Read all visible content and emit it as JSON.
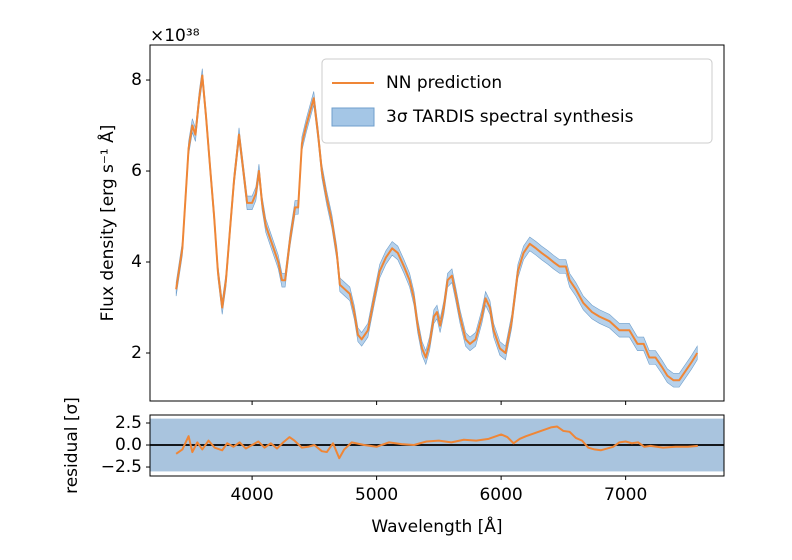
{
  "chart_data": [
    {
      "type": "line",
      "offset_text": "×10³⁸",
      "ylabel": "Flux density [erg s⁻¹ Å]",
      "xlim": [
        3180,
        7790
      ],
      "ylim": [
        0.945,
        8.77
      ],
      "xticks": [
        4000,
        5000,
        6000,
        7000
      ],
      "yticks": [
        2,
        4,
        6,
        8
      ],
      "legend": "upper right",
      "x": [
        3390,
        3440,
        3490,
        3520,
        3545,
        3575,
        3600,
        3630,
        3665,
        3695,
        3725,
        3760,
        3790,
        3825,
        3855,
        3895,
        3930,
        3960,
        4000,
        4030,
        4055,
        4080,
        4110,
        4160,
        4210,
        4240,
        4265,
        4305,
        4345,
        4370,
        4400,
        4435,
        4465,
        4495,
        4530,
        4560,
        4600,
        4640,
        4680,
        4705,
        4745,
        4785,
        4820,
        4850,
        4880,
        4930,
        4980,
        5025,
        5075,
        5125,
        5170,
        5220,
        5265,
        5300,
        5330,
        5365,
        5395,
        5425,
        5460,
        5485,
        5510,
        5540,
        5570,
        5605,
        5635,
        5670,
        5715,
        5750,
        5795,
        5845,
        5875,
        5910,
        5940,
        5990,
        6035,
        6085,
        6135,
        6180,
        6230,
        6280,
        6325,
        6375,
        6420,
        6470,
        6520,
        6550,
        6600,
        6660,
        6730,
        6790,
        6870,
        6950,
        7030,
        7095,
        7145,
        7190,
        7240,
        7290,
        7335,
        7385,
        7430,
        7480,
        7530,
        7575
      ],
      "series": [
        {
          "name": "3σ TARDIS spectral synthesis",
          "color": "#a4c6e6",
          "edge_color": "#6f9fcc",
          "lower": [
            3.25,
            4.15,
            6.35,
            6.85,
            6.65,
            7.45,
            7.95,
            7.05,
            5.85,
            4.85,
            3.65,
            2.85,
            3.45,
            4.65,
            5.65,
            6.65,
            5.85,
            5.15,
            5.15,
            5.35,
            5.85,
            5.15,
            4.65,
            4.25,
            3.85,
            3.45,
            3.45,
            4.35,
            5.05,
            5.05,
            6.45,
            6.85,
            7.15,
            7.45,
            6.65,
            5.85,
            5.25,
            4.75,
            4.05,
            3.35,
            3.25,
            3.15,
            2.75,
            2.25,
            2.15,
            2.35,
            3.05,
            3.65,
            3.95,
            4.15,
            4.05,
            3.75,
            3.45,
            3.05,
            2.45,
            1.95,
            1.75,
            2.05,
            2.65,
            2.75,
            2.45,
            2.85,
            3.45,
            3.55,
            3.15,
            2.65,
            2.15,
            2.05,
            2.15,
            2.65,
            3.05,
            2.85,
            2.35,
            1.95,
            1.85,
            2.55,
            3.65,
            4.05,
            4.25,
            4.15,
            4.05,
            3.95,
            3.85,
            3.75,
            3.75,
            3.45,
            3.25,
            2.95,
            2.75,
            2.65,
            2.55,
            2.35,
            2.35,
            2.05,
            2.05,
            1.75,
            1.75,
            1.55,
            1.35,
            1.25,
            1.25,
            1.45,
            1.65,
            1.85
          ],
          "upper": [
            3.55,
            4.45,
            6.65,
            7.15,
            6.95,
            7.75,
            8.25,
            7.35,
            6.15,
            5.15,
            3.95,
            3.15,
            3.75,
            4.95,
            5.95,
            6.95,
            6.15,
            5.45,
            5.45,
            5.65,
            6.15,
            5.45,
            4.95,
            4.55,
            4.15,
            3.75,
            3.75,
            4.65,
            5.35,
            5.35,
            6.75,
            7.15,
            7.45,
            7.75,
            6.95,
            6.15,
            5.55,
            5.05,
            4.35,
            3.65,
            3.55,
            3.45,
            3.05,
            2.55,
            2.45,
            2.65,
            3.35,
            3.95,
            4.25,
            4.45,
            4.35,
            4.05,
            3.75,
            3.35,
            2.75,
            2.25,
            2.05,
            2.35,
            2.95,
            3.05,
            2.75,
            3.15,
            3.75,
            3.85,
            3.45,
            2.95,
            2.45,
            2.35,
            2.45,
            2.95,
            3.35,
            3.15,
            2.65,
            2.25,
            2.15,
            2.85,
            3.95,
            4.35,
            4.55,
            4.45,
            4.35,
            4.25,
            4.15,
            4.05,
            4.05,
            3.75,
            3.55,
            3.25,
            3.05,
            2.95,
            2.85,
            2.65,
            2.65,
            2.35,
            2.35,
            2.05,
            2.05,
            1.85,
            1.65,
            1.55,
            1.55,
            1.75,
            1.95,
            2.15
          ]
        },
        {
          "name": "NN prediction",
          "color": "#ef8636",
          "values": [
            3.4,
            4.3,
            6.5,
            7.0,
            6.8,
            7.6,
            8.1,
            7.2,
            6.0,
            5.0,
            3.8,
            3.0,
            3.6,
            4.8,
            5.8,
            6.8,
            6.0,
            5.3,
            5.3,
            5.5,
            6.0,
            5.3,
            4.8,
            4.4,
            4.0,
            3.6,
            3.6,
            4.5,
            5.2,
            5.2,
            6.6,
            7.0,
            7.3,
            7.6,
            6.8,
            6.0,
            5.4,
            4.9,
            4.2,
            3.5,
            3.4,
            3.3,
            2.9,
            2.4,
            2.3,
            2.5,
            3.2,
            3.8,
            4.1,
            4.3,
            4.2,
            3.9,
            3.6,
            3.2,
            2.6,
            2.1,
            1.9,
            2.2,
            2.8,
            2.9,
            2.6,
            3.0,
            3.6,
            3.7,
            3.3,
            2.8,
            2.3,
            2.2,
            2.3,
            2.8,
            3.2,
            3.0,
            2.5,
            2.1,
            2.0,
            2.7,
            3.8,
            4.2,
            4.4,
            4.3,
            4.2,
            4.1,
            4.0,
            3.9,
            3.9,
            3.6,
            3.4,
            3.1,
            2.9,
            2.8,
            2.7,
            2.5,
            2.5,
            2.2,
            2.2,
            1.9,
            1.9,
            1.7,
            1.5,
            1.4,
            1.4,
            1.6,
            1.8,
            2.0
          ]
        }
      ]
    },
    {
      "type": "line",
      "ylabel": "residual [σ]",
      "xlabel": "Wavelength [Å]",
      "xlim": [
        3180,
        7790
      ],
      "ylim": [
        -3.52,
        3.41
      ],
      "xticks": [
        4000,
        5000,
        6000,
        7000
      ],
      "yticks": [
        2.5,
        {
          "value": 0,
          "label": "0.0"
        },
        {
          "value": -2.5,
          "label": "−2.5"
        }
      ],
      "band": {
        "lower": -3,
        "upper": 3,
        "color": "#a9c4de"
      },
      "hline": 0,
      "x": [
        3390,
        3440,
        3490,
        3520,
        3560,
        3600,
        3650,
        3700,
        3760,
        3800,
        3850,
        3900,
        3950,
        4000,
        4050,
        4100,
        4150,
        4200,
        4250,
        4300,
        4340,
        4400,
        4450,
        4500,
        4560,
        4600,
        4650,
        4700,
        4740,
        4800,
        4900,
        5000,
        5100,
        5200,
        5300,
        5400,
        5500,
        5600,
        5700,
        5800,
        5900,
        6000,
        6050,
        6100,
        6150,
        6200,
        6300,
        6400,
        6450,
        6500,
        6550,
        6600,
        6650,
        6700,
        6750,
        6800,
        6850,
        6900,
        6950,
        7000,
        7050,
        7100,
        7150,
        7200,
        7300,
        7400,
        7500,
        7580
      ],
      "series": [
        {
          "color": "#ef8636",
          "values": [
            -1.0,
            -0.5,
            1.0,
            -0.8,
            0.3,
            -0.5,
            0.5,
            -0.3,
            -0.6,
            0.2,
            -0.2,
            0.3,
            -0.4,
            0.0,
            0.4,
            -0.3,
            0.2,
            -0.4,
            0.3,
            0.9,
            0.5,
            -0.3,
            -0.2,
            0.0,
            -0.7,
            -0.8,
            0.2,
            -1.5,
            -0.5,
            0.3,
            0.0,
            -0.2,
            0.3,
            0.1,
            0.0,
            0.4,
            0.5,
            0.3,
            0.6,
            0.5,
            0.7,
            1.2,
            0.9,
            0.2,
            0.7,
            1.0,
            1.5,
            2.0,
            2.1,
            1.6,
            1.5,
            0.8,
            0.5,
            -0.3,
            -0.5,
            -0.6,
            -0.4,
            -0.2,
            0.3,
            0.4,
            0.2,
            0.3,
            -0.2,
            -0.1,
            -0.3,
            -0.2,
            -0.2,
            -0.1
          ]
        }
      ]
    }
  ]
}
